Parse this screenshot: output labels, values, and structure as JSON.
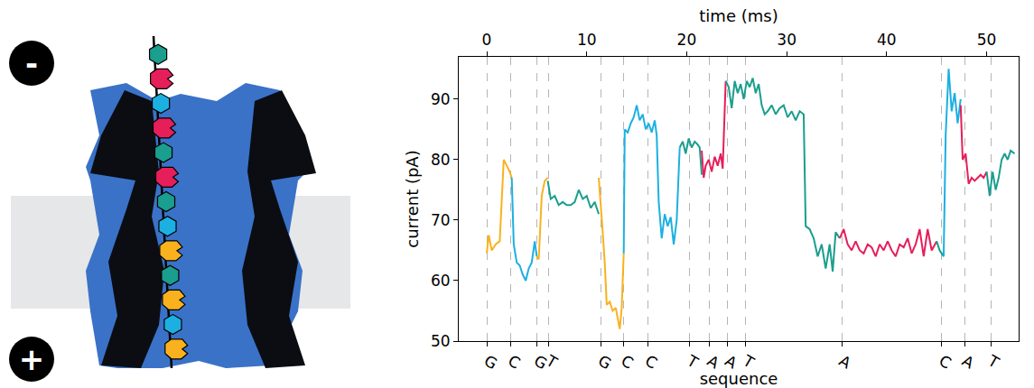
{
  "chart_data": {
    "type": "line",
    "xlabel": "sequence",
    "top_xlabel": "time (ms)",
    "ylabel": "current (pA)",
    "xlim": [
      -2.8,
      53.2
    ],
    "xticks": [
      {
        "value": 0,
        "label": "G"
      },
      {
        "value": 2.4,
        "label": "C"
      },
      {
        "value": 5.0,
        "label": "G"
      },
      {
        "value": 6.2,
        "label": "T"
      },
      {
        "value": 11.4,
        "label": "G"
      },
      {
        "value": 13.7,
        "label": "C"
      },
      {
        "value": 16.1,
        "label": "C"
      },
      {
        "value": 20.3,
        "label": "T"
      },
      {
        "value": 22.3,
        "label": "A"
      },
      {
        "value": 24.1,
        "label": "A"
      },
      {
        "value": 25.9,
        "label": "T"
      },
      {
        "value": 35.5,
        "label": "A"
      },
      {
        "value": 45.5,
        "label": "C"
      },
      {
        "value": 47.8,
        "label": "A"
      },
      {
        "value": 50.4,
        "label": "T"
      }
    ],
    "x2ticks": [
      0,
      10,
      20,
      30,
      40,
      50
    ],
    "ylim": [
      50,
      97
    ],
    "yticks": [
      50,
      60,
      70,
      80,
      90
    ],
    "grid": "x",
    "series": [
      {
        "color": "#f9b21d",
        "x": [
          0,
          0.2,
          0.5,
          0.9,
          1.3,
          1.7,
          2.0,
          2.3,
          2.5
        ],
        "values": [
          64.5,
          67.5,
          65,
          66,
          66.5,
          80,
          79,
          78,
          77
        ]
      },
      {
        "color": "#1cb0e2",
        "x": [
          2.5,
          2.7,
          3.0,
          3.3,
          3.6,
          3.9,
          4.2,
          4.5,
          4.8,
          5.0
        ],
        "values": [
          77,
          66,
          63,
          62.5,
          61,
          60,
          62,
          63,
          66.5,
          64
        ]
      },
      {
        "color": "#f9b21d",
        "x": [
          5.0,
          5.2,
          5.5,
          5.8,
          6.1
        ],
        "values": [
          64,
          63.5,
          74,
          76.5,
          77
        ]
      },
      {
        "color": "#1a9e8e",
        "x": [
          6.1,
          6.4,
          6.8,
          7.2,
          7.6,
          8.0,
          8.4,
          8.8,
          9.2,
          9.6,
          10.0,
          10.4,
          10.8,
          11.2
        ],
        "values": [
          76.5,
          73.5,
          74,
          72.5,
          73,
          72.5,
          72.5,
          73,
          75,
          73.5,
          74,
          72,
          73,
          71
        ]
      },
      {
        "color": "#f9b21d",
        "x": [
          11.2,
          11.4,
          11.6,
          11.8,
          12.0,
          12.3,
          12.6,
          12.9,
          13.1,
          13.3,
          13.5,
          13.7
        ],
        "values": [
          77,
          73,
          68,
          63,
          56,
          56.5,
          55,
          55.5,
          53.5,
          52,
          55.5,
          64.5
        ]
      },
      {
        "color": "#1cb0e2",
        "x": [
          13.7,
          13.8,
          14.1,
          14.4,
          14.7,
          15.0,
          15.3,
          15.6,
          15.9,
          16.2,
          16.5,
          16.8,
          17.0,
          17.2,
          17.5,
          17.8,
          18.1,
          18.4,
          18.7,
          19.0,
          19.3
        ],
        "values": [
          64.5,
          85,
          84.5,
          86,
          87,
          89,
          86.5,
          87.5,
          85,
          86,
          84.5,
          86.5,
          84,
          73,
          67,
          71,
          69,
          70.5,
          66,
          70,
          82
        ]
      },
      {
        "color": "#1a9e8e",
        "x": [
          19.3,
          19.6,
          19.9,
          20.2,
          20.5,
          20.8,
          21.1,
          21.3,
          21.5
        ],
        "values": [
          82,
          83,
          81,
          83.5,
          82,
          83,
          82.5,
          82,
          77.5
        ]
      },
      {
        "color": "#e61e5a",
        "x": [
          21.5,
          21.7,
          21.9,
          22.2,
          22.5,
          22.8,
          23.1,
          23.4,
          23.6,
          23.9
        ],
        "values": [
          81.5,
          77,
          79,
          80,
          78,
          80.5,
          79,
          81,
          78.5,
          93
        ]
      },
      {
        "color": "#1a9e8e",
        "x": [
          23.9,
          24.2,
          24.5,
          24.8,
          25.1,
          25.4,
          25.7,
          26.0,
          26.3,
          26.6,
          26.9,
          27.2,
          27.5,
          27.8,
          28.1,
          28.5,
          28.9,
          29.3,
          29.7,
          30.1,
          30.5,
          30.9,
          31.3,
          31.7,
          31.9,
          32.3,
          32.7,
          33.1,
          33.5,
          33.9,
          34.3,
          34.6,
          34.9,
          35.3
        ],
        "values": [
          93,
          92,
          88.5,
          93,
          91,
          92.5,
          90,
          93,
          92,
          93.5,
          91,
          92.5,
          89,
          87.5,
          88,
          89,
          87.5,
          88.5,
          89,
          87,
          88,
          86.5,
          88,
          87.5,
          69,
          68.5,
          67,
          64,
          66,
          62,
          66,
          61.5,
          68,
          67
        ]
      },
      {
        "color": "#e61e5a",
        "x": [
          35.3,
          35.7,
          36.1,
          36.5,
          36.9,
          37.3,
          37.7,
          38.1,
          38.5,
          38.9,
          39.3,
          39.7,
          40.1,
          40.5,
          40.9,
          41.3,
          41.7,
          42.1,
          42.5,
          42.9,
          43.3,
          43.7,
          44.1,
          44.5,
          45.0
        ],
        "values": [
          67,
          68.5,
          66,
          65,
          66.5,
          65,
          64.5,
          66,
          65.5,
          64,
          66,
          65,
          66.5,
          65,
          64,
          66,
          65.5,
          67,
          64.5,
          66,
          68.5,
          64,
          68.5,
          65,
          66.5
        ]
      },
      {
        "color": "#1a9e8e",
        "x": [
          45.0,
          45.3,
          45.7
        ],
        "values": [
          66.5,
          65,
          64
        ]
      },
      {
        "color": "#1cb0e2",
        "x": [
          45.7,
          45.9,
          46.2,
          46.5,
          46.8,
          47.1,
          47.4
        ],
        "values": [
          64,
          84,
          95,
          88,
          91,
          86,
          90
        ]
      },
      {
        "color": "#e61e5a",
        "x": [
          47.4,
          47.6,
          47.9,
          48.2,
          48.5,
          48.8,
          49.1,
          49.4,
          49.7,
          50.0
        ],
        "values": [
          89,
          80,
          81,
          76,
          77,
          76.5,
          77,
          77.5,
          77,
          78
        ]
      },
      {
        "color": "#1a9e8e",
        "x": [
          50.0,
          50.3,
          50.6,
          50.9,
          51.2,
          51.5,
          51.8,
          52.1,
          52.4,
          52.8
        ],
        "values": [
          78,
          74,
          78,
          75,
          77,
          80,
          81,
          80,
          81.5,
          81
        ]
      }
    ]
  },
  "diagram": {
    "top_label": "-",
    "bottom_label": "+",
    "strand": [
      {
        "color": "#1a9e8e",
        "marker": "hexagon"
      },
      {
        "color": "#e61e5a",
        "marker": "notch"
      },
      {
        "color": "#1cb0e2",
        "marker": "hexagon"
      },
      {
        "color": "#e61e5a",
        "marker": "notch"
      },
      {
        "color": "#1a9e8e",
        "marker": "hexagon"
      },
      {
        "color": "#e61e5a",
        "marker": "notch"
      },
      {
        "color": "#1a9e8e",
        "marker": "hexagon"
      },
      {
        "color": "#1cb0e2",
        "marker": "hexagon"
      },
      {
        "color": "#f9b21d",
        "marker": "notch"
      },
      {
        "color": "#1a9e8e",
        "marker": "hexagon"
      },
      {
        "color": "#f9b21d",
        "marker": "notch"
      },
      {
        "color": "#1cb0e2",
        "marker": "hexagon"
      },
      {
        "color": "#f9b21d",
        "marker": "notch"
      }
    ]
  }
}
